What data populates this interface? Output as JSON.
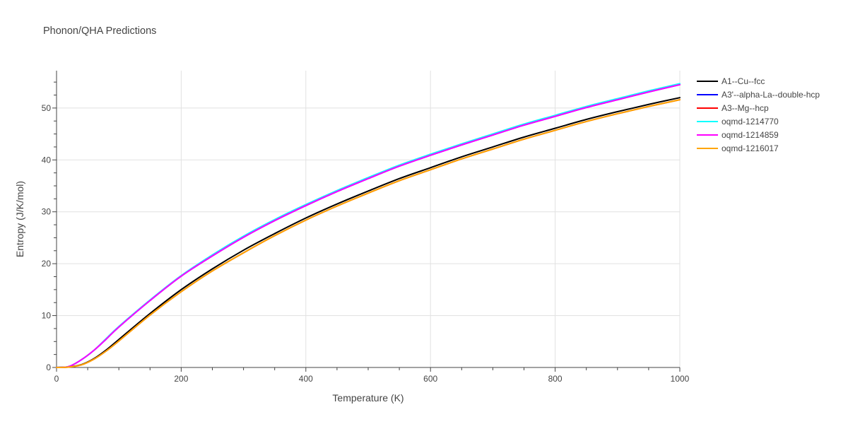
{
  "chart_data": {
    "type": "line",
    "title": "Phonon/QHA Predictions",
    "xlabel": "Temperature (K)",
    "ylabel": "Entropy (J/K/mol)",
    "xlim": [
      0,
      1000
    ],
    "ylim": [
      0,
      57.2
    ],
    "xticks": [
      0,
      200,
      400,
      600,
      800,
      1000
    ],
    "yticks": [
      0,
      10,
      20,
      30,
      40,
      50
    ],
    "grid": true,
    "legend_position": "right",
    "x": [
      0,
      20,
      40,
      60,
      80,
      100,
      150,
      200,
      250,
      300,
      350,
      400,
      450,
      500,
      550,
      600,
      650,
      700,
      750,
      800,
      850,
      900,
      950,
      1000
    ],
    "series": [
      {
        "name": "A1--Cu--fcc",
        "color": "#000000",
        "values": [
          0,
          0.1,
          0.55,
          1.7,
          3.4,
          5.4,
          10.4,
          15.0,
          19.0,
          22.6,
          25.8,
          28.8,
          31.5,
          34.0,
          36.4,
          38.5,
          40.6,
          42.5,
          44.4,
          46.1,
          47.8,
          49.3,
          50.7,
          52.0
        ]
      },
      {
        "name": "A3'--alpha-La--double-hcp",
        "color": "#0000ff",
        "values": [
          0,
          0.2,
          1.5,
          3.3,
          5.5,
          7.8,
          12.9,
          17.6,
          21.5,
          25.1,
          28.3,
          31.2,
          33.9,
          36.4,
          38.8,
          40.9,
          42.9,
          44.8,
          46.7,
          48.4,
          50.1,
          51.6,
          53.1,
          54.5
        ]
      },
      {
        "name": "A3--Mg--hcp",
        "color": "#ff0000",
        "values": [
          0,
          0.08,
          0.5,
          1.6,
          3.2,
          5.1,
          10.1,
          14.6,
          18.6,
          22.1,
          25.4,
          28.4,
          31.1,
          33.6,
          36.0,
          38.1,
          40.2,
          42.1,
          44.0,
          45.7,
          47.4,
          48.9,
          50.3,
          51.6
        ]
      },
      {
        "name": "oqmd-1214770",
        "color": "#00ffff",
        "values": [
          0,
          0.2,
          1.5,
          3.3,
          5.6,
          7.9,
          13.0,
          17.7,
          21.7,
          25.3,
          28.5,
          31.4,
          34.1,
          36.6,
          39.0,
          41.1,
          43.1,
          45.0,
          46.9,
          48.6,
          50.3,
          51.8,
          53.3,
          54.7
        ]
      },
      {
        "name": "oqmd-1214859",
        "color": "#ff00ff",
        "values": [
          0,
          0.2,
          1.5,
          3.3,
          5.5,
          7.8,
          12.9,
          17.6,
          21.5,
          25.1,
          28.3,
          31.2,
          33.9,
          36.4,
          38.8,
          40.9,
          42.9,
          44.8,
          46.7,
          48.4,
          50.1,
          51.6,
          53.1,
          54.5
        ]
      },
      {
        "name": "oqmd-1216017",
        "color": "#ffa500",
        "values": [
          0,
          0.08,
          0.5,
          1.6,
          3.2,
          5.1,
          10.1,
          14.6,
          18.6,
          22.1,
          25.4,
          28.4,
          31.1,
          33.6,
          36.0,
          38.1,
          40.2,
          42.1,
          44.0,
          45.7,
          47.4,
          48.9,
          50.3,
          51.6
        ]
      }
    ]
  }
}
